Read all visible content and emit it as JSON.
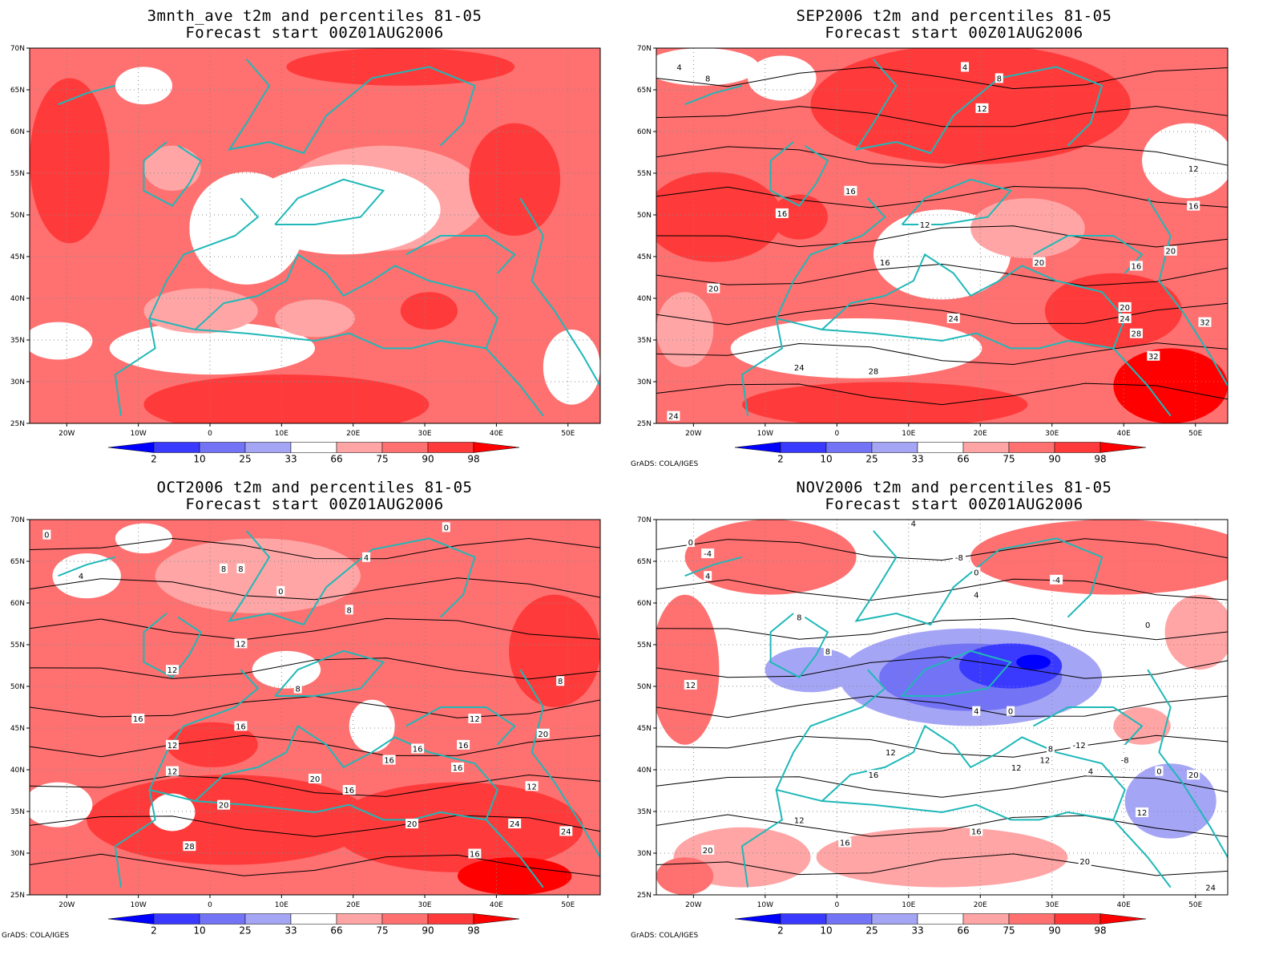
{
  "panels": [
    {
      "id": "p1",
      "title": "3mnth_ave t2m and percentiles 81-05",
      "subtitle": "Forecast start 00Z01AUG2006",
      "credit": ""
    },
    {
      "id": "p2",
      "title": "SEP2006 t2m and percentiles 81-05",
      "subtitle": "Forecast start 00Z01AUG2006",
      "credit": "GrADS: COLA/IGES"
    },
    {
      "id": "p3",
      "title": "OCT2006 t2m and percentiles 81-05",
      "subtitle": "Forecast start 00Z01AUG2006",
      "credit": "GrADS: COLA/IGES"
    },
    {
      "id": "p4",
      "title": "NOV2006 t2m and percentiles 81-05",
      "subtitle": "Forecast start 00Z01AUG2006",
      "credit": "GrADS: COLA/IGES"
    }
  ],
  "lat_labels": [
    "70N",
    "65N",
    "60N",
    "55N",
    "50N",
    "45N",
    "40N",
    "35N",
    "30N",
    "25N"
  ],
  "lon_labels": [
    "20W",
    "10W",
    "0",
    "10E",
    "20E",
    "30E",
    "40E",
    "50E"
  ],
  "colorbar_labels": [
    "2",
    "10",
    "25",
    "33",
    "66",
    "75",
    "90",
    "98"
  ],
  "colorbar_colors": [
    "#0000ff",
    "#3a3aff",
    "#7373f5",
    "#a5a5f5",
    "#ffffff",
    "#ffa5a5",
    "#ff7070",
    "#ff3a3a",
    "#ff0000"
  ],
  "contours": {
    "p2": [
      "4",
      "8",
      "4",
      "8",
      "12",
      "16",
      "16",
      "12",
      "16",
      "20",
      "20",
      "24",
      "24",
      "28",
      "32",
      "12",
      "16",
      "20",
      "16",
      "20",
      "24",
      "28",
      "32",
      "24"
    ],
    "p3": [
      "0",
      "0",
      "4",
      "8",
      "8",
      "0",
      "4",
      "8",
      "12",
      "12",
      "8",
      "16",
      "16",
      "12",
      "16",
      "12",
      "16",
      "20",
      "20",
      "16",
      "16",
      "12",
      "20",
      "16",
      "20",
      "24",
      "24",
      "28",
      "12",
      "16",
      "8"
    ],
    "p4": [
      "0",
      "-4",
      "4",
      "-8",
      "4",
      "0",
      "-4",
      "0",
      "4",
      "8",
      "8",
      "12",
      "4",
      "0",
      "12",
      "16",
      "12",
      "12",
      "-12",
      "8",
      "-8",
      "4",
      "0",
      "12",
      "16",
      "20",
      "16",
      "12",
      "20",
      "20",
      "24"
    ]
  }
}
